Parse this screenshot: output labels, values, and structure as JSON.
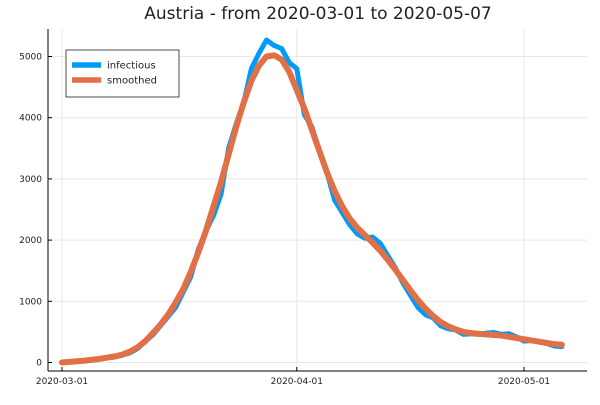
{
  "chart_data": {
    "type": "line",
    "title": "Austria - from 2020-03-01 to 2020-05-07",
    "xlabel": "",
    "ylabel": "",
    "x_start_date": "2020-03-01",
    "xlim": [
      "2020-03-01",
      "2020-05-07"
    ],
    "ylim": [
      -100,
      5420
    ],
    "x_ticks": [
      {
        "date": "2020-03-01",
        "label": "2020-03-01"
      },
      {
        "date": "2020-04-01",
        "label": "2020-04-01"
      },
      {
        "date": "2020-05-01",
        "label": "2020-05-01"
      }
    ],
    "y_ticks": [
      0,
      1000,
      2000,
      3000,
      4000,
      5000
    ],
    "grid": true,
    "legend_position": "top-left",
    "series": [
      {
        "name": "infectious",
        "color": "#009af9",
        "values": [
          0,
          10,
          20,
          30,
          40,
          60,
          80,
          90,
          120,
          160,
          230,
          350,
          450,
          600,
          750,
          900,
          1150,
          1400,
          1850,
          2150,
          2400,
          2750,
          3500,
          3900,
          4250,
          4800,
          5050,
          5270,
          5180,
          5130,
          4900,
          4800,
          4050,
          3850,
          3450,
          3100,
          2650,
          2450,
          2250,
          2100,
          2030,
          2050,
          1950,
          1750,
          1550,
          1300,
          1100,
          900,
          780,
          730,
          600,
          550,
          530,
          460,
          470,
          460,
          480,
          490,
          460,
          470,
          420,
          350,
          360,
          340,
          310,
          270,
          260
        ]
      },
      {
        "name": "smoothed",
        "color": "#e26f46",
        "values": [
          0,
          10,
          20,
          30,
          45,
          60,
          80,
          100,
          130,
          180,
          250,
          350,
          480,
          620,
          780,
          980,
          1200,
          1480,
          1800,
          2150,
          2550,
          2950,
          3400,
          3850,
          4250,
          4600,
          4850,
          5000,
          5020,
          4950,
          4750,
          4450,
          4150,
          3800,
          3450,
          3100,
          2800,
          2550,
          2350,
          2200,
          2080,
          1960,
          1830,
          1680,
          1520,
          1350,
          1180,
          1020,
          880,
          760,
          660,
          590,
          540,
          500,
          480,
          470,
          460,
          450,
          440,
          420,
          400,
          380,
          360,
          340,
          320,
          300,
          290
        ]
      }
    ]
  }
}
